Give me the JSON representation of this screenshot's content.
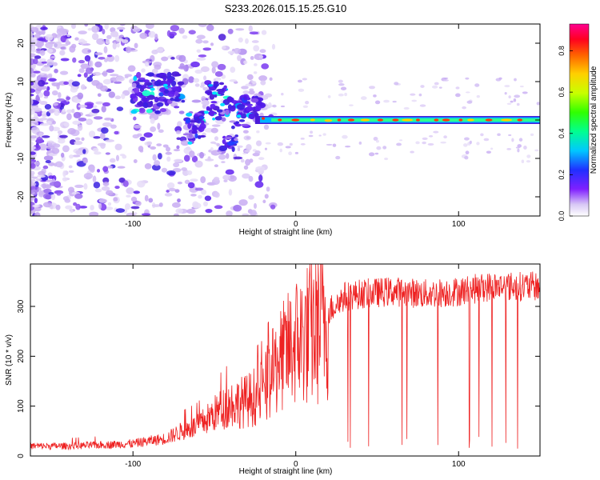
{
  "title": "S233.2026.015.15.25.G10",
  "chart_data": [
    {
      "type": "heatmap",
      "xlabel": "Height of straight line (km)",
      "ylabel": "Frequency (Hz)",
      "xlim": [
        -163,
        150
      ],
      "ylim": [
        -25,
        25
      ],
      "xticks": [
        -100,
        0,
        100
      ],
      "yticks": [
        20,
        10,
        0,
        -10,
        -20
      ],
      "colorbar": {
        "label": "Normalized spectral amplitude",
        "range": [
          0,
          0.93
        ],
        "ticks": [
          "0.0",
          "0.2",
          "0.4",
          "0.6",
          "0.8"
        ]
      },
      "ridge": {
        "description": "dominant spectral line",
        "points": [
          {
            "x": -68,
            "y": -5
          },
          {
            "x": -60,
            "y": 0
          },
          {
            "x": -50,
            "y": 5
          },
          {
            "x": -40,
            "y": 1
          },
          {
            "x": -30,
            "y": 3
          },
          {
            "x": -20,
            "y": 0
          },
          {
            "x": 0,
            "y": 0
          },
          {
            "x": 150,
            "y": 0
          }
        ]
      }
    },
    {
      "type": "line",
      "xlabel": "Height of straight line (km)",
      "ylabel": "SNR (10 * v/v)",
      "xlim": [
        -163,
        150
      ],
      "ylim": [
        0,
        385
      ],
      "xticks": [
        -100,
        0,
        100
      ],
      "yticks": [
        0,
        100,
        200,
        300
      ],
      "color": "#ee2222",
      "series": [
        {
          "name": "SNR",
          "x": [
            -163,
            -140,
            -120,
            -100,
            -80,
            -70,
            -60,
            -50,
            -40,
            -30,
            -20,
            -15,
            -10,
            0,
            10,
            20,
            30,
            40,
            60,
            80,
            100,
            120,
            150
          ],
          "values": [
            20,
            20,
            22,
            25,
            35,
            50,
            60,
            85,
            105,
            110,
            130,
            160,
            190,
            230,
            250,
            290,
            320,
            325,
            330,
            325,
            330,
            340,
            340
          ]
        }
      ]
    }
  ]
}
